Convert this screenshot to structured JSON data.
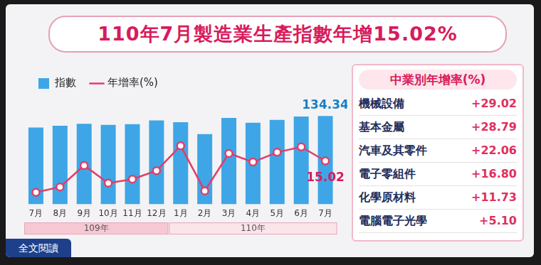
{
  "chart_data": {
    "type": "bar",
    "title": "110年7月製造業生產指數年增15.02%",
    "categories": [
      "7月",
      "8月",
      "9月",
      "10月",
      "11月",
      "12月",
      "1月",
      "2月",
      "3月",
      "4月",
      "5月",
      "6月",
      "7月"
    ],
    "series": [
      {
        "name": "指數",
        "type": "bar",
        "color": "#3ea6e6",
        "values": [
          116.8,
          119.6,
          122.5,
          121.0,
          122.0,
          127.6,
          125.0,
          107.0,
          131.6,
          124.3,
          128.5,
          133.6,
          134.34
        ],
        "value_labels": [
          null,
          null,
          null,
          null,
          null,
          null,
          null,
          null,
          null,
          null,
          null,
          null,
          "134.34"
        ]
      },
      {
        "name": "年增率(%)",
        "type": "line",
        "color": "#e23d67",
        "marker": "circle",
        "axis": "y2",
        "values": [
          0.5,
          3.0,
          12.9,
          4.8,
          6.6,
          10.5,
          22.0,
          1.2,
          18.5,
          14.5,
          19.0,
          21.5,
          15.02
        ],
        "value_labels": [
          null,
          null,
          null,
          null,
          null,
          null,
          null,
          null,
          null,
          null,
          null,
          null,
          "15.02"
        ]
      }
    ],
    "ylim": [
      0,
      165
    ],
    "yticks": [
      0,
      165
    ],
    "y2lim": [
      -5,
      45
    ],
    "y2ticks": [
      -5,
      45
    ],
    "grid": false,
    "legend": "top",
    "tick_labels": "x",
    "x_groups": [
      {
        "label": "109年",
        "from": 0,
        "to": 5
      },
      {
        "label": "110年",
        "from": 6,
        "to": 12
      }
    ]
  },
  "panel": {
    "title": "中業別年增率(%)",
    "rows": [
      {
        "label": "機械設備",
        "value": "+29.02"
      },
      {
        "label": "基本金屬",
        "value": "+28.79"
      },
      {
        "label": "汽車及其零件",
        "value": "+22.06"
      },
      {
        "label": "電子零組件",
        "value": "+16.80"
      },
      {
        "label": "化學原材料",
        "value": "+11.73"
      },
      {
        "label": "電腦電子光學",
        "value": "+5.10"
      }
    ]
  },
  "footer": "全文閱讀"
}
